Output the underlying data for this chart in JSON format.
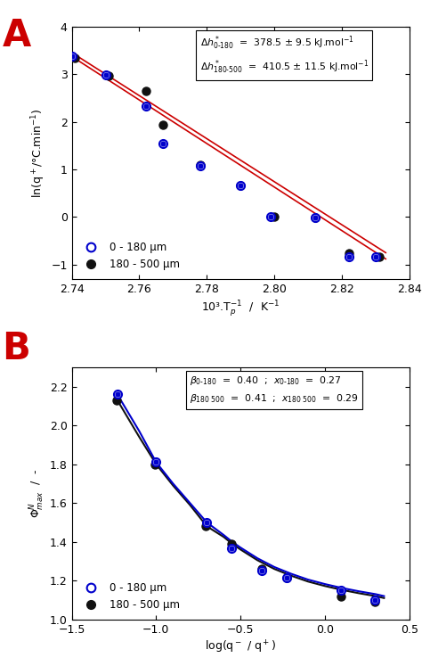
{
  "panel_A": {
    "blue_x": [
      2.74,
      2.75,
      2.762,
      2.767,
      2.778,
      2.79,
      2.799,
      2.812,
      2.822,
      2.83
    ],
    "blue_y": [
      3.38,
      2.98,
      2.33,
      1.55,
      1.07,
      0.66,
      0.01,
      -0.02,
      -0.83,
      -0.83
    ],
    "black_x": [
      2.741,
      2.751,
      2.762,
      2.767,
      2.778,
      2.79,
      2.8,
      2.812,
      2.822,
      2.831
    ],
    "black_y": [
      3.35,
      2.97,
      2.65,
      1.94,
      1.1,
      0.66,
      0.0,
      -0.02,
      -0.76,
      -0.83
    ],
    "fit1_x": [
      2.739,
      2.833
    ],
    "fit1_y": [
      3.42,
      -0.88
    ],
    "fit2_x": [
      2.739,
      2.833
    ],
    "fit2_y": [
      3.5,
      -0.75
    ],
    "xlim": [
      2.74,
      2.84
    ],
    "ylim": [
      -1.3,
      4.0
    ],
    "xticks": [
      2.74,
      2.76,
      2.78,
      2.8,
      2.82,
      2.84
    ],
    "yticks": [
      -1,
      0,
      1,
      2,
      3,
      4
    ],
    "xlabel": "10³.T$_p^{-1}$  /  K$^{-1}$",
    "ylabel": "ln(q$^+$/°C.min$^{-1}$)",
    "legend1": "0 - 180 μm",
    "legend2": "180 - 500 μm"
  },
  "panel_B": {
    "blue_x": [
      -1.23,
      -1.0,
      -0.7,
      -0.555,
      -0.375,
      -0.225,
      0.095,
      0.295
    ],
    "blue_y": [
      2.16,
      1.81,
      1.5,
      1.365,
      1.25,
      1.215,
      1.15,
      1.1
    ],
    "black_x": [
      -1.235,
      -1.005,
      -0.705,
      -0.555,
      -0.375,
      -0.225,
      0.095,
      0.295
    ],
    "black_y": [
      2.13,
      1.8,
      1.48,
      1.39,
      1.26,
      1.215,
      1.12,
      1.09
    ],
    "fit_x": [
      -1.23,
      -1.1,
      -1.0,
      -0.9,
      -0.8,
      -0.7,
      -0.6,
      -0.55,
      -0.5,
      -0.4,
      -0.3,
      -0.2,
      -0.1,
      0.0,
      0.1,
      0.2,
      0.3,
      0.35
    ],
    "fit_blue_y": [
      2.16,
      1.97,
      1.81,
      1.7,
      1.6,
      1.5,
      1.435,
      1.4,
      1.37,
      1.315,
      1.27,
      1.235,
      1.205,
      1.182,
      1.162,
      1.145,
      1.13,
      1.12
    ],
    "fit_black_y": [
      2.13,
      1.94,
      1.8,
      1.69,
      1.59,
      1.48,
      1.425,
      1.39,
      1.36,
      1.305,
      1.26,
      1.225,
      1.195,
      1.172,
      1.152,
      1.135,
      1.12,
      1.11
    ],
    "xlim": [
      -1.5,
      0.5
    ],
    "ylim": [
      1.0,
      2.3
    ],
    "xticks": [
      -1.5,
      -1.0,
      -0.5,
      0.0,
      0.5
    ],
    "yticks": [
      1.0,
      1.2,
      1.4,
      1.6,
      1.8,
      2.0,
      2.2
    ],
    "xlabel": "log(q$^-$ / q$^+$)",
    "ylabel": "$\\Phi^N_{max}$  /  -",
    "legend1": "0 - 180 μm",
    "legend2": "180 - 500 μm"
  },
  "label_A_color": "#cc0000",
  "label_B_color": "#cc0000",
  "blue_color": "#0000cc",
  "black_color": "#111111",
  "red_color": "#cc0000",
  "bg_color": "#ffffff"
}
